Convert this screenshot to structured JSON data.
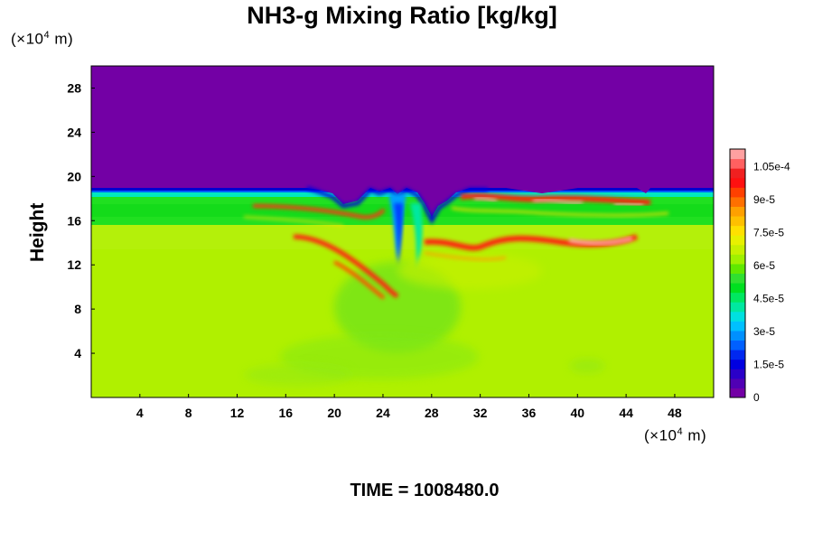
{
  "chart_data": {
    "type": "heatmap",
    "title": "NH3-g Mixing Ratio [kg/kg]",
    "ylabel": "Height",
    "xlabel": "",
    "x_unit": {
      "prefix": "(×10",
      "exp": "4",
      "suffix": " m)"
    },
    "y_unit": {
      "prefix": "(×10",
      "exp": "4",
      "suffix": " m)"
    },
    "xlim": [
      0,
      51.2
    ],
    "ylim": [
      0,
      30
    ],
    "x_ticks": [
      4,
      8,
      12,
      16,
      20,
      24,
      28,
      32,
      36,
      40,
      44,
      48
    ],
    "y_ticks": [
      4,
      8,
      12,
      16,
      20,
      24,
      28
    ],
    "colorbar": {
      "min": 0,
      "max": 0.000113,
      "ticks": [
        "0",
        "1.5e-5",
        "3e-5",
        "4.5e-5",
        "6e-5",
        "7.5e-5",
        "9e-5",
        "1.05e-4"
      ],
      "colors": [
        "#7300a5",
        "#5000b4",
        "#2a00c8",
        "#0000e0",
        "#0028f0",
        "#0060ff",
        "#0090ff",
        "#00c0ff",
        "#00e0e0",
        "#00e8a0",
        "#00e860",
        "#00e020",
        "#30e030",
        "#60e800",
        "#a0f000",
        "#c8f000",
        "#e8f000",
        "#ffe000",
        "#ffc000",
        "#ffa000",
        "#ff7000",
        "#ff4000",
        "#ff1010",
        "#f02020",
        "#ff6060",
        "#ffa0a0"
      ]
    },
    "field_regions": [
      {
        "name": "upper layer",
        "y_range": [
          19,
          30
        ],
        "value": 0
      },
      {
        "name": "middle band",
        "y_range": [
          15.5,
          18.5
        ],
        "value": 5.5e-05
      },
      {
        "name": "lower layer",
        "y_range": [
          0,
          15.5
        ],
        "value": 7.2e-05
      },
      {
        "name": "central plume",
        "x_center": 25.5,
        "y_range": [
          12,
          19
        ],
        "value": 3e-05
      },
      {
        "name": "upper ridge",
        "x_range": [
          30,
          48
        ],
        "y_center": 17.3,
        "value": 0.000105
      },
      {
        "name": "lower ridge",
        "x_range": [
          18,
          46
        ],
        "y_center": 13.7,
        "value": 0.0001
      }
    ]
  },
  "footer": {
    "time_text": "TIME = 1008480.0"
  }
}
